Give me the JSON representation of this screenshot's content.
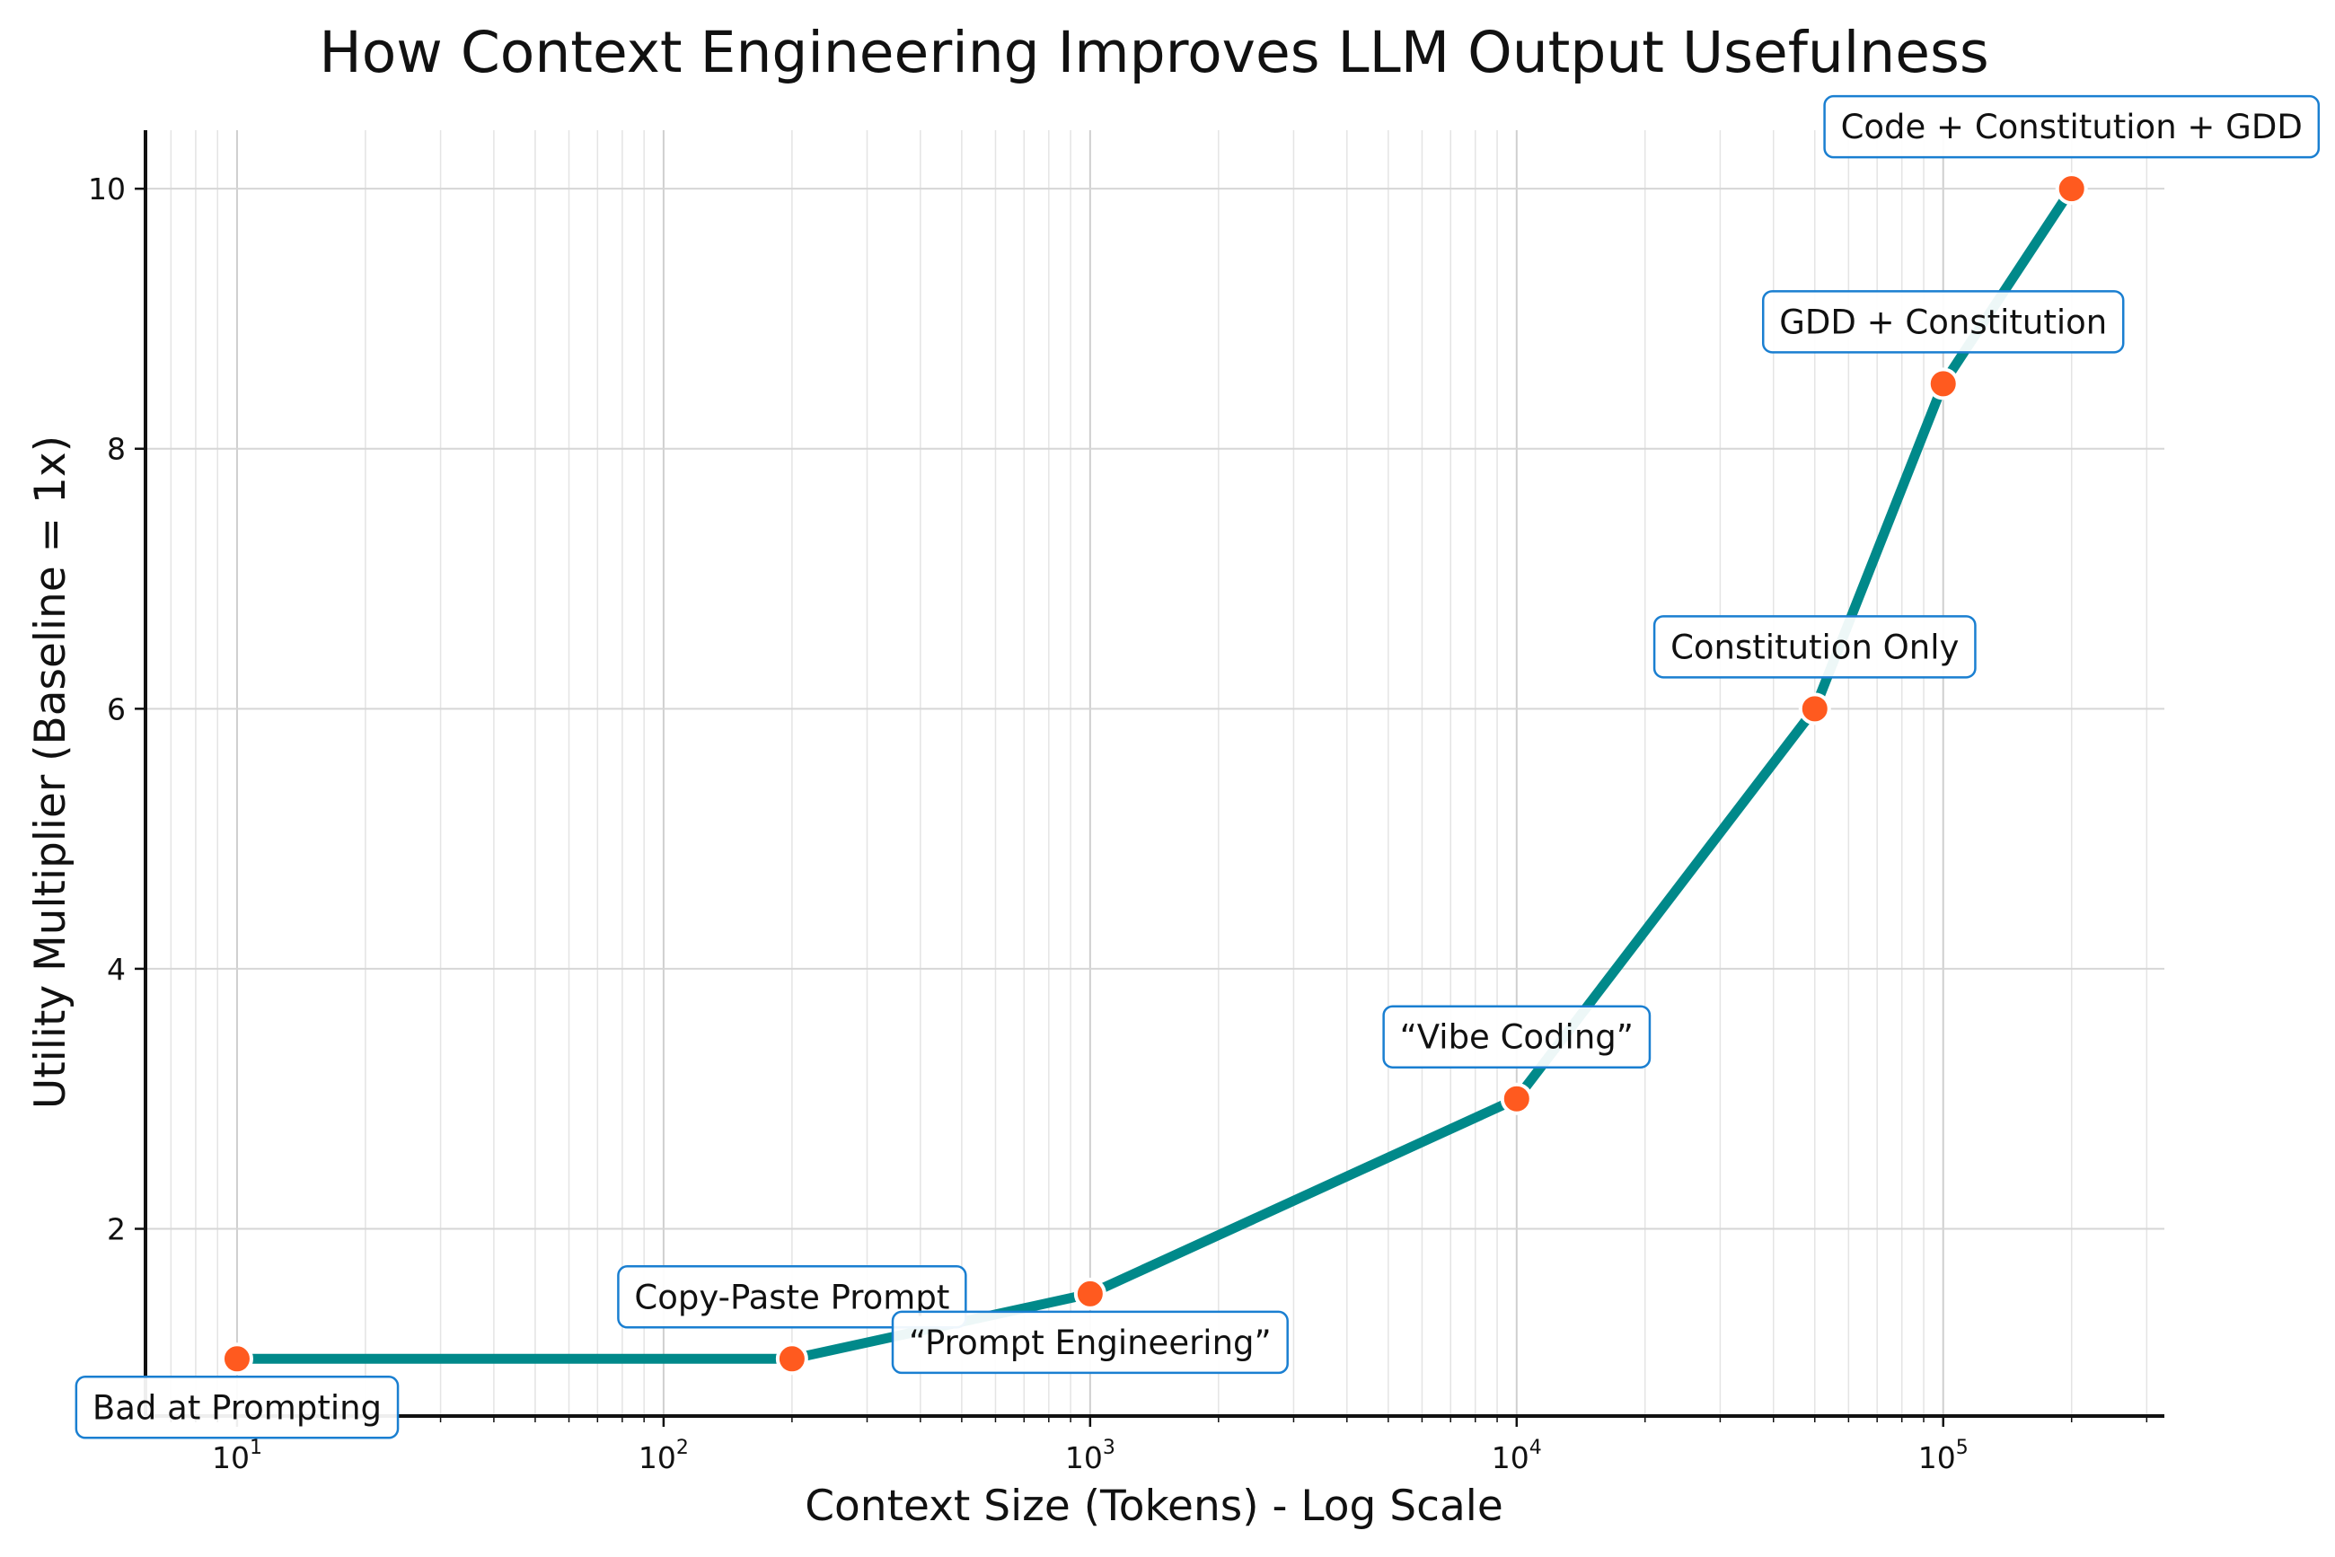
{
  "chart_data": {
    "type": "line",
    "title": "How Context Engineering Improves LLM Output Usefulness",
    "xlabel": "Context Size (Tokens) - Log Scale",
    "ylabel": "Utility Multiplier (Baseline = 1x)",
    "xscale": "log",
    "xlim": [
      6.1,
      330000
    ],
    "ylim": [
      0.56,
      10.45
    ],
    "x_ticks": [
      10,
      100,
      1000,
      10000,
      100000
    ],
    "x_tick_labels": [
      {
        "base": "10",
        "exp": "1"
      },
      {
        "base": "10",
        "exp": "2"
      },
      {
        "base": "10",
        "exp": "3"
      },
      {
        "base": "10",
        "exp": "4"
      },
      {
        "base": "10",
        "exp": "5"
      }
    ],
    "y_ticks": [
      2,
      4,
      6,
      8,
      10
    ],
    "grid": true,
    "colors": {
      "line": "#00898a",
      "marker": "#ff5a1f",
      "label_border": "#1a7fd1"
    },
    "x": [
      10,
      200,
      1000,
      10000,
      50000,
      100000,
      200000
    ],
    "y": [
      1,
      1,
      1.5,
      3,
      6,
      8.5,
      10
    ],
    "annotations": [
      "Bad at Prompting",
      "Copy-Paste Prompt",
      "“Prompt Engineering”",
      "“Vibe Coding”",
      "Constitution Only",
      "GDD + Constitution",
      "Code + Constitution + GDD"
    ]
  }
}
